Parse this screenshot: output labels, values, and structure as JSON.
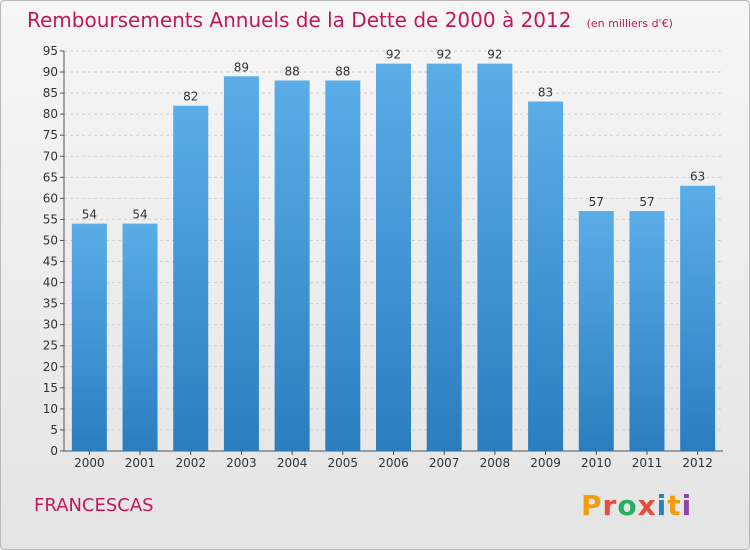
{
  "header": {
    "title": "Remboursements Annuels de la Dette de 2000 à 2012",
    "unit_note": "(en milliers d'€)"
  },
  "footer": {
    "commune": "FRANCESCAS",
    "brand": "Proxiti",
    "brand_colors": [
      "#f39c12",
      "#e74c3c",
      "#27ae60",
      "#e74c3c",
      "#2980b9",
      "#f39c12",
      "#8e44ad"
    ]
  },
  "colors": {
    "title": "#c2185b",
    "bar_top": "#5aade6",
    "bar_bottom": "#2a7ec0",
    "grid": "#cfcfcf",
    "axis": "#555555",
    "text": "#333333"
  },
  "chart_data": {
    "type": "bar",
    "title": "Remboursements Annuels de la Dette de 2000 à 2012",
    "subtitle": "(en milliers d'€)",
    "xlabel": "",
    "ylabel": "",
    "categories": [
      "2000",
      "2001",
      "2002",
      "2003",
      "2004",
      "2005",
      "2006",
      "2007",
      "2008",
      "2009",
      "2010",
      "2011",
      "2012"
    ],
    "values": [
      54,
      54,
      82,
      89,
      88,
      88,
      92,
      92,
      92,
      83,
      57,
      57,
      63
    ],
    "ylim": [
      0,
      95
    ],
    "ytick_step": 5,
    "grid": true,
    "data_labels": true
  }
}
